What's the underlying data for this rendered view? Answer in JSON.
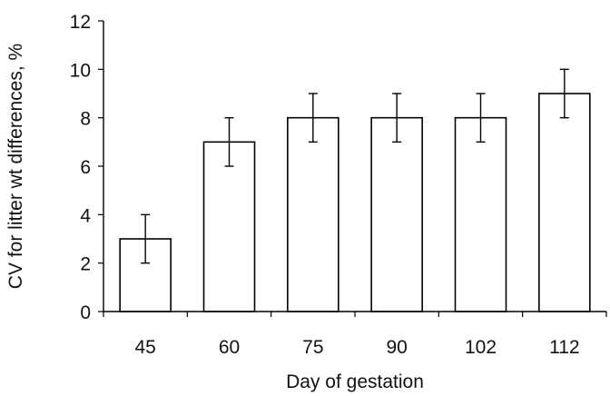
{
  "chart_data": {
    "type": "bar",
    "categories": [
      "45",
      "60",
      "75",
      "90",
      "102",
      "112"
    ],
    "values": [
      3,
      7,
      8,
      8,
      8,
      9
    ],
    "error_bars": [
      1,
      1,
      1,
      1,
      1,
      1
    ],
    "title": "",
    "xlabel": "Day of gestation",
    "ylabel": "CV for litter wt differences, %",
    "ylim": [
      0,
      12
    ],
    "yticks": [
      "0",
      "2",
      "4",
      "6",
      "8",
      "10",
      "12"
    ],
    "grid": false,
    "legend": "none",
    "colors": {
      "bar_fill": "#ffffff",
      "bar_stroke": "#000000",
      "axis": "#000000"
    }
  }
}
